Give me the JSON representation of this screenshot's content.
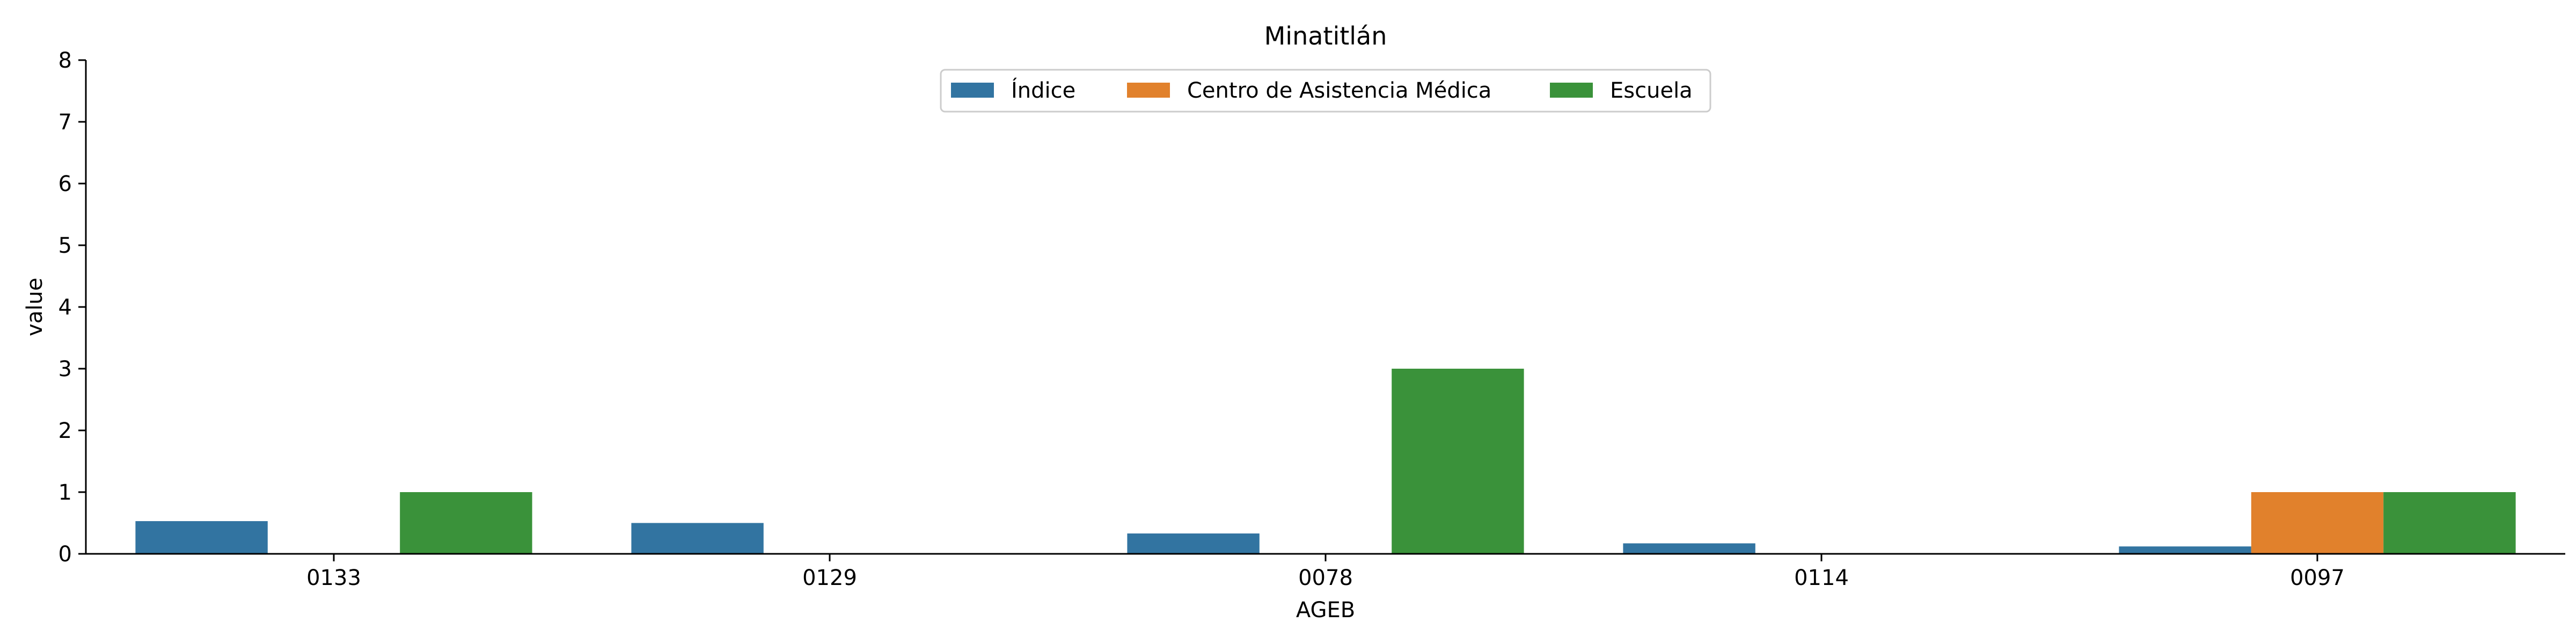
{
  "chart_data": {
    "type": "bar",
    "title": "Minatitlán",
    "xlabel": "AGEB",
    "ylabel": "value",
    "ylim": [
      0,
      8
    ],
    "yticks": [
      0,
      1,
      2,
      3,
      4,
      5,
      6,
      7,
      8
    ],
    "categories": [
      "0133",
      "0129",
      "0078",
      "0114",
      "0097"
    ],
    "series": [
      {
        "name": "Índice",
        "color": "#3274a1",
        "values": [
          0.53,
          0.5,
          0.33,
          0.17,
          0.12
        ]
      },
      {
        "name": "Centro de Asistencia Médica",
        "color": "#e1812c",
        "values": [
          0,
          0,
          0,
          0,
          1
        ]
      },
      {
        "name": "Escuela",
        "color": "#3a923a",
        "values": [
          1,
          0,
          3,
          0,
          1
        ]
      }
    ],
    "legend": "top-center",
    "grid": false
  }
}
